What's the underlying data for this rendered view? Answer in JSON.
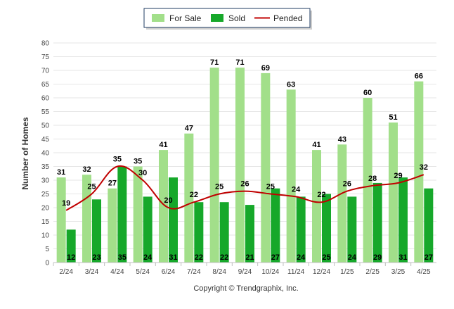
{
  "chart_data": {
    "type": "bar",
    "categories": [
      "2/24",
      "3/24",
      "4/24",
      "5/24",
      "6/24",
      "7/24",
      "8/24",
      "9/24",
      "10/24",
      "11/24",
      "12/24",
      "1/25",
      "2/25",
      "3/25",
      "4/25"
    ],
    "series": [
      {
        "name": "For Sale",
        "type": "bar",
        "color": "#a2df8a",
        "values": [
          31,
          32,
          27,
          35,
          41,
          47,
          71,
          71,
          69,
          63,
          41,
          43,
          60,
          51,
          66
        ]
      },
      {
        "name": "Sold",
        "type": "bar",
        "color": "#16a82a",
        "values": [
          12,
          23,
          35,
          24,
          31,
          22,
          22,
          21,
          27,
          24,
          25,
          24,
          29,
          31,
          27
        ]
      },
      {
        "name": "Pended",
        "type": "line",
        "color": "#c00000",
        "values": [
          19,
          25,
          35,
          30,
          20,
          22,
          25,
          26,
          25,
          24,
          22,
          26,
          28,
          29,
          32
        ]
      }
    ],
    "ylabel": "Number of Homes",
    "xlabel": "",
    "ylim": [
      0,
      80
    ],
    "ytick_step": 5,
    "grid": true,
    "legend_position": "top-center",
    "footer": "Copyright © Trendgraphix, Inc."
  }
}
